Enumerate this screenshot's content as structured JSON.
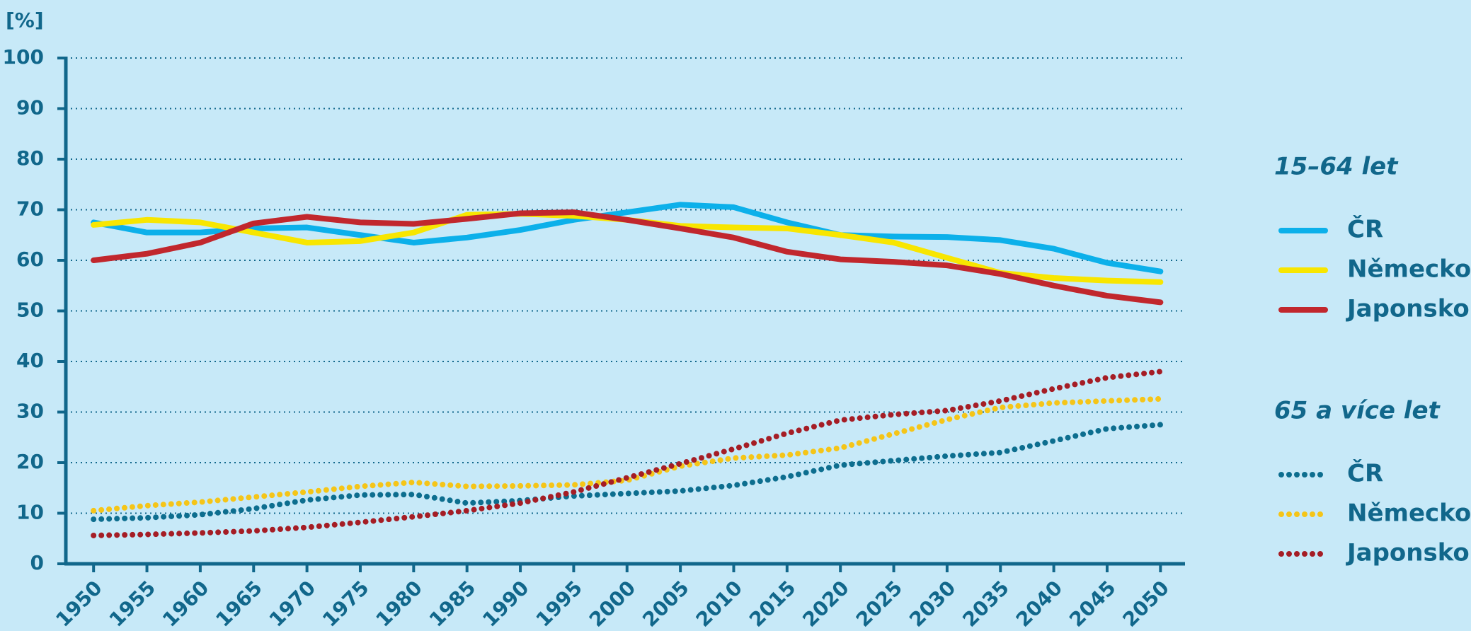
{
  "chart_data": {
    "type": "line",
    "y_label": "[%]",
    "x": [
      1950,
      1955,
      1960,
      1965,
      1970,
      1975,
      1980,
      1985,
      1990,
      1995,
      2000,
      2005,
      2010,
      2015,
      2020,
      2025,
      2030,
      2035,
      2040,
      2045,
      2050
    ],
    "xlim": [
      1947.4,
      2052.3
    ],
    "xticks": [
      1950,
      1955,
      1960,
      1965,
      1970,
      1975,
      1980,
      1985,
      1990,
      1995,
      2000,
      2005,
      2010,
      2015,
      2020,
      2025,
      2030,
      2035,
      2040,
      2045,
      2050
    ],
    "ylim": [
      0,
      100
    ],
    "yticks": [
      0,
      10,
      20,
      30,
      40,
      50,
      60,
      70,
      80,
      90,
      100
    ],
    "grid": true,
    "legend_groups": [
      {
        "title": "15–64 let",
        "style": "solid"
      },
      {
        "title": "65 a více let",
        "style": "dotted"
      }
    ],
    "series": [
      {
        "name": "ČR",
        "color": "#0cb0ea",
        "style": "solid",
        "values": [
          67.5,
          65.5,
          65.5,
          66.3,
          66.5,
          65,
          63.5,
          64.5,
          66,
          68,
          69.5,
          71,
          70.5,
          67.5,
          65,
          64.7,
          64.6,
          64,
          62.3,
          59.5,
          57.8
        ]
      },
      {
        "name": "Německo",
        "color": "#f8e600",
        "style": "solid",
        "values": [
          67,
          68,
          67.5,
          65.5,
          63.5,
          63.8,
          65.5,
          69,
          69.2,
          68.8,
          68,
          66.8,
          66.5,
          66.3,
          65,
          63.5,
          60.5,
          57.5,
          56.5,
          56,
          55.7
        ]
      },
      {
        "name": "Japonsko",
        "color": "#c1272d",
        "style": "solid",
        "values": [
          60,
          61.3,
          63.5,
          67.3,
          68.6,
          67.5,
          67.2,
          68.2,
          69.3,
          69.5,
          68,
          66.3,
          64.5,
          61.7,
          60.2,
          59.7,
          59,
          57.3,
          55,
          53,
          51.7
        ]
      },
      {
        "name": "ČR",
        "color": "#0d6e8f",
        "style": "dotted",
        "values": [
          8.8,
          9.1,
          9.7,
          10.9,
          12.6,
          13.6,
          13.7,
          12,
          12.5,
          13.4,
          13.9,
          14.4,
          15.5,
          17.2,
          19.5,
          20.4,
          21.3,
          22,
          24.3,
          26.7,
          27.5
        ]
      },
      {
        "name": "Německo",
        "color": "#f5c518",
        "style": "dotted",
        "values": [
          10.5,
          11.5,
          12.2,
          13.2,
          14.2,
          15.3,
          16.1,
          15.3,
          15.4,
          15.6,
          16.5,
          19.3,
          20.9,
          21.5,
          22.9,
          25.7,
          28.5,
          30.9,
          31.8,
          32.2,
          32.6
        ]
      },
      {
        "name": "Japonsko",
        "color": "#a51d25",
        "style": "dotted",
        "values": [
          5.6,
          5.8,
          6.1,
          6.5,
          7.2,
          8.2,
          9.3,
          10.5,
          12,
          14.2,
          17,
          19.8,
          22.7,
          25.8,
          28.4,
          29.5,
          30.3,
          32.2,
          34.6,
          36.8,
          38
        ]
      }
    ]
  }
}
